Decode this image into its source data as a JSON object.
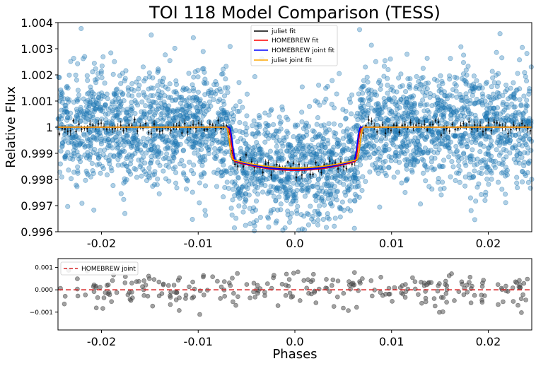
{
  "chart_data": [
    {
      "type": "scatter",
      "title": "TOI 118 Model Comparison (TESS)",
      "xlabel": "",
      "ylabel": "Relative Flux",
      "xlim": [
        -0.0245,
        0.0245
      ],
      "ylim": [
        0.996,
        1.004
      ],
      "xticks": [
        -0.02,
        -0.01,
        0.0,
        0.01,
        0.02
      ],
      "xtick_labels": [
        "-0.02",
        "-0.01",
        "0.0",
        "0.01",
        "0.02"
      ],
      "yticks": [
        0.996,
        0.997,
        0.998,
        0.999,
        1.0,
        1.001,
        1.002,
        1.003,
        1.004
      ],
      "ytick_labels": [
        "0.996",
        "0.997",
        "0.998",
        "0.999",
        "1",
        "1.001",
        "1.002",
        "1.003",
        "1.004"
      ],
      "grid": false,
      "legend_position": "top-center",
      "colors": {
        "data": "#1f77b4",
        "binned": "#000000",
        "juliet_fit": "#000000",
        "homebrew_fit": "#ff0000",
        "homebrew_joint_fit": "#0000ff",
        "juliet_joint_fit": "#ffa500"
      },
      "transit_depth": 0.00162,
      "transit_half_duration": 0.0069,
      "series": [
        {
          "name": "juliet fit",
          "color": "#000000",
          "depth": 0.00158,
          "half_duration": 0.0071
        },
        {
          "name": "HOMEBREW fit",
          "color": "#ff0000",
          "depth": 0.00165,
          "half_duration": 0.0069
        },
        {
          "name": "HOMEBREW joint fit",
          "color": "#0000ff",
          "depth": 0.00162,
          "half_duration": 0.0068
        },
        {
          "name": "juliet joint fit",
          "color": "#ffa500",
          "depth": 0.00156,
          "half_duration": 0.0071
        }
      ],
      "scatter_scale": 0.0011
    },
    {
      "type": "scatter",
      "title": "",
      "xlabel": "Phases",
      "ylabel": "",
      "xlim": [
        -0.0245,
        0.0245
      ],
      "ylim": [
        -0.0018,
        0.0014
      ],
      "xticks": [
        -0.02,
        -0.01,
        0.0,
        0.01,
        0.02
      ],
      "xtick_labels": [
        "-0.02",
        "-0.01",
        "0.0",
        "0.01",
        "0.02"
      ],
      "yticks": [
        -0.001,
        0.0,
        0.001
      ],
      "ytick_labels": [
        "−0.001",
        "0.000",
        "0.001"
      ],
      "grid": false,
      "legend_position": "top-left",
      "colors": {
        "data": "#555555",
        "zero_line": "#d62728"
      },
      "series": [
        {
          "name": "HOMEBREW joint",
          "color": "#d62728",
          "style": "dashed",
          "y": 0.0
        }
      ],
      "scatter_scale": 0.0004
    }
  ]
}
